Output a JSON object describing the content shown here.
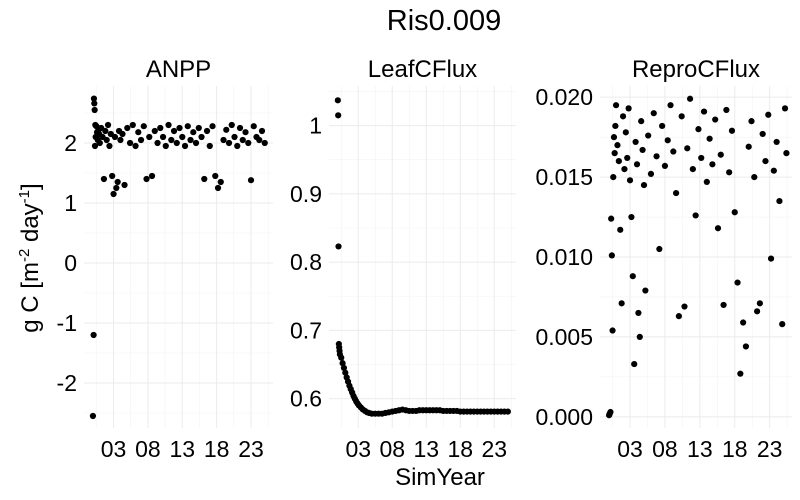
{
  "title": "Ris0.009",
  "ylabel": "g C [m-2 day-1]",
  "ylabel_parts": [
    "g C [m",
    "-2",
    " day",
    "-1",
    "]"
  ],
  "xlabel": "SimYear",
  "chart_data": [
    {
      "type": "scatter",
      "panel": "ANPP",
      "x_ticks": [
        "03",
        "08",
        "13",
        "18",
        "23"
      ],
      "y_ticks": [
        -2,
        -1,
        0,
        1,
        2
      ],
      "ylim": [
        -2.75,
        2.95
      ],
      "grid": true,
      "series": [
        {
          "points": [
            [
              0.0,
              -2.55
            ],
            [
              0.1,
              -1.2
            ],
            [
              0.15,
              2.74
            ],
            [
              0.2,
              2.66
            ],
            [
              0.25,
              2.55
            ],
            [
              0.3,
              1.95
            ],
            [
              0.35,
              2.3
            ],
            [
              0.4,
              2.1
            ],
            [
              0.5,
              2.28
            ],
            [
              0.6,
              2.18
            ],
            [
              0.7,
              2.05
            ],
            [
              0.8,
              2.22
            ],
            [
              0.9,
              2.15
            ],
            [
              1.0,
              2.0
            ],
            [
              1.2,
              2.25
            ],
            [
              1.4,
              2.1
            ],
            [
              1.6,
              1.4
            ],
            [
              1.8,
              2.2
            ],
            [
              2.0,
              2.05
            ],
            [
              2.2,
              2.3
            ],
            [
              2.4,
              1.95
            ],
            [
              2.6,
              2.15
            ],
            [
              2.8,
              1.45
            ],
            [
              3.0,
              1.15
            ],
            [
              3.2,
              2.1
            ],
            [
              3.4,
              1.25
            ],
            [
              3.6,
              1.35
            ],
            [
              3.8,
              2.2
            ],
            [
              4.0,
              2.05
            ],
            [
              4.3,
              2.15
            ],
            [
              4.6,
              1.3
            ],
            [
              5.0,
              2.25
            ],
            [
              5.4,
              2.0
            ],
            [
              5.8,
              2.3
            ],
            [
              6.2,
              1.95
            ],
            [
              6.6,
              2.18
            ],
            [
              7.0,
              2.05
            ],
            [
              7.4,
              2.28
            ],
            [
              7.8,
              1.4
            ],
            [
              8.2,
              2.1
            ],
            [
              8.6,
              1.45
            ],
            [
              9.0,
              2.2
            ],
            [
              9.4,
              2.0
            ],
            [
              9.8,
              2.25
            ],
            [
              10.2,
              2.1
            ],
            [
              10.6,
              1.95
            ],
            [
              11.0,
              2.3
            ],
            [
              11.4,
              2.05
            ],
            [
              11.8,
              2.2
            ],
            [
              12.2,
              2.0
            ],
            [
              12.6,
              2.25
            ],
            [
              13.0,
              2.1
            ],
            [
              13.4,
              1.95
            ],
            [
              13.8,
              2.28
            ],
            [
              14.2,
              2.05
            ],
            [
              14.6,
              2.18
            ],
            [
              15.0,
              2.0
            ],
            [
              15.4,
              2.25
            ],
            [
              15.8,
              2.1
            ],
            [
              16.2,
              1.4
            ],
            [
              16.6,
              2.2
            ],
            [
              17.0,
              1.95
            ],
            [
              17.4,
              2.28
            ],
            [
              17.8,
              1.45
            ],
            [
              18.2,
              1.25
            ],
            [
              18.6,
              1.35
            ],
            [
              19.0,
              2.05
            ],
            [
              19.4,
              2.22
            ],
            [
              19.8,
              2.0
            ],
            [
              20.2,
              2.3
            ],
            [
              20.6,
              2.1
            ],
            [
              21.0,
              1.95
            ],
            [
              21.4,
              2.25
            ],
            [
              21.8,
              2.05
            ],
            [
              22.2,
              2.18
            ],
            [
              22.6,
              2.0
            ],
            [
              23.0,
              1.38
            ],
            [
              23.4,
              2.28
            ],
            [
              23.8,
              2.1
            ],
            [
              24.2,
              2.05
            ],
            [
              24.6,
              2.2
            ],
            [
              25.0,
              2.0
            ]
          ]
        }
      ]
    },
    {
      "type": "scatter",
      "panel": "LeafCFlux",
      "x_ticks": [
        "03",
        "08",
        "13",
        "18",
        "23"
      ],
      "y_ticks": [
        0.6,
        0.7,
        0.8,
        0.9,
        1.0
      ],
      "ylim": [
        0.557,
        1.058
      ],
      "grid": true,
      "series": [
        {
          "points": [
            [
              0.0,
              1.037
            ],
            [
              0.05,
              1.015
            ],
            [
              0.1,
              0.823
            ],
            [
              0.15,
              0.68
            ],
            [
              0.2,
              0.675
            ],
            [
              0.25,
              0.67
            ],
            [
              0.3,
              0.665
            ],
            [
              0.5,
              0.66
            ],
            [
              0.7,
              0.652
            ],
            [
              0.9,
              0.645
            ],
            [
              1.1,
              0.638
            ],
            [
              1.3,
              0.631
            ],
            [
              1.5,
              0.625
            ],
            [
              1.7,
              0.619
            ],
            [
              1.9,
              0.614
            ],
            [
              2.1,
              0.609
            ],
            [
              2.3,
              0.604
            ],
            [
              2.5,
              0.6
            ],
            [
              2.7,
              0.596
            ],
            [
              2.9,
              0.593
            ],
            [
              3.1,
              0.59
            ],
            [
              3.4,
              0.587
            ],
            [
              3.7,
              0.584
            ],
            [
              4.0,
              0.582
            ],
            [
              4.3,
              0.58
            ],
            [
              4.6,
              0.579
            ],
            [
              5.0,
              0.578
            ],
            [
              5.5,
              0.578
            ],
            [
              6.0,
              0.578
            ],
            [
              6.5,
              0.578
            ],
            [
              7.0,
              0.579
            ],
            [
              7.5,
              0.58
            ],
            [
              8.0,
              0.581
            ],
            [
              8.5,
              0.582
            ],
            [
              9.0,
              0.583
            ],
            [
              9.5,
              0.584
            ],
            [
              10.0,
              0.583
            ],
            [
              10.5,
              0.582
            ],
            [
              11.0,
              0.582
            ],
            [
              11.5,
              0.582
            ],
            [
              12.0,
              0.583
            ],
            [
              12.5,
              0.583
            ],
            [
              13.0,
              0.583
            ],
            [
              13.5,
              0.583
            ],
            [
              14.0,
              0.583
            ],
            [
              14.5,
              0.583
            ],
            [
              15.0,
              0.583
            ],
            [
              15.5,
              0.582
            ],
            [
              16.0,
              0.582
            ],
            [
              16.5,
              0.582
            ],
            [
              17.0,
              0.582
            ],
            [
              17.5,
              0.582
            ],
            [
              18.0,
              0.581
            ],
            [
              18.5,
              0.581
            ],
            [
              19.0,
              0.581
            ],
            [
              19.5,
              0.581
            ],
            [
              20.0,
              0.581
            ],
            [
              20.5,
              0.581
            ],
            [
              21.0,
              0.581
            ],
            [
              21.5,
              0.581
            ],
            [
              22.0,
              0.581
            ],
            [
              22.5,
              0.581
            ],
            [
              23.0,
              0.581
            ],
            [
              23.5,
              0.581
            ],
            [
              24.0,
              0.581
            ],
            [
              24.5,
              0.581
            ],
            [
              25.0,
              0.581
            ]
          ]
        }
      ]
    },
    {
      "type": "scatter",
      "panel": "ReproCFlux",
      "x_ticks": [
        "03",
        "08",
        "13",
        "18",
        "23"
      ],
      "y_ticks": [
        0.0,
        0.005,
        0.01,
        0.015,
        0.02
      ],
      "y_tick_labels": [
        "0.000",
        "0.005",
        "0.010",
        "0.015",
        "0.020"
      ],
      "ylim": [
        -0.0007,
        0.0207
      ],
      "grid": true,
      "series": [
        {
          "points": [
            [
              0.0,
              0.0001
            ],
            [
              0.1,
              0.0002
            ],
            [
              0.2,
              0.0003
            ],
            [
              0.3,
              0.0124
            ],
            [
              0.4,
              0.0101
            ],
            [
              0.5,
              0.0054
            ],
            [
              0.6,
              0.015
            ],
            [
              0.7,
              0.0175
            ],
            [
              0.8,
              0.0165
            ],
            [
              0.9,
              0.0182
            ],
            [
              1.0,
              0.0195
            ],
            [
              1.2,
              0.017
            ],
            [
              1.4,
              0.016
            ],
            [
              1.6,
              0.0117
            ],
            [
              1.8,
              0.0071
            ],
            [
              2.0,
              0.0188
            ],
            [
              2.2,
              0.0155
            ],
            [
              2.4,
              0.0178
            ],
            [
              2.6,
              0.0162
            ],
            [
              2.8,
              0.0193
            ],
            [
              3.0,
              0.0148
            ],
            [
              3.2,
              0.0125
            ],
            [
              3.4,
              0.0088
            ],
            [
              3.6,
              0.0033
            ],
            [
              3.8,
              0.0172
            ],
            [
              4.0,
              0.0158
            ],
            [
              4.2,
              0.0065
            ],
            [
              4.4,
              0.005
            ],
            [
              4.6,
              0.0185
            ],
            [
              4.8,
              0.0167
            ],
            [
              5.0,
              0.0145
            ],
            [
              5.2,
              0.0079
            ],
            [
              5.6,
              0.0176
            ],
            [
              6.0,
              0.0152
            ],
            [
              6.4,
              0.019
            ],
            [
              6.8,
              0.0163
            ],
            [
              7.2,
              0.0105
            ],
            [
              7.6,
              0.0182
            ],
            [
              8.0,
              0.0157
            ],
            [
              8.4,
              0.0173
            ],
            [
              8.8,
              0.0195
            ],
            [
              9.2,
              0.0166
            ],
            [
              9.6,
              0.014
            ],
            [
              10.0,
              0.0063
            ],
            [
              10.4,
              0.0188
            ],
            [
              10.8,
              0.0069
            ],
            [
              11.2,
              0.0168
            ],
            [
              11.6,
              0.0199
            ],
            [
              12.0,
              0.0155
            ],
            [
              12.4,
              0.0126
            ],
            [
              12.8,
              0.018
            ],
            [
              13.2,
              0.0162
            ],
            [
              13.6,
              0.0191
            ],
            [
              14.0,
              0.0147
            ],
            [
              14.4,
              0.0174
            ],
            [
              14.8,
              0.0158
            ],
            [
              15.2,
              0.0186
            ],
            [
              15.6,
              0.0118
            ],
            [
              16.0,
              0.0164
            ],
            [
              16.4,
              0.007
            ],
            [
              16.8,
              0.0192
            ],
            [
              17.2,
              0.0153
            ],
            [
              17.6,
              0.0179
            ],
            [
              18.0,
              0.0128
            ],
            [
              18.4,
              0.0084
            ],
            [
              18.8,
              0.0027
            ],
            [
              19.2,
              0.0059
            ],
            [
              19.6,
              0.0044
            ],
            [
              20.0,
              0.0169
            ],
            [
              20.4,
              0.0185
            ],
            [
              20.8,
              0.015
            ],
            [
              21.2,
              0.0066
            ],
            [
              21.6,
              0.0071
            ],
            [
              22.0,
              0.0177
            ],
            [
              22.4,
              0.016
            ],
            [
              22.8,
              0.0189
            ],
            [
              23.2,
              0.0099
            ],
            [
              23.6,
              0.0154
            ],
            [
              24.0,
              0.0172
            ],
            [
              24.4,
              0.0135
            ],
            [
              24.8,
              0.0058
            ],
            [
              25.2,
              0.0193
            ],
            [
              25.4,
              0.0165
            ]
          ]
        }
      ]
    }
  ]
}
